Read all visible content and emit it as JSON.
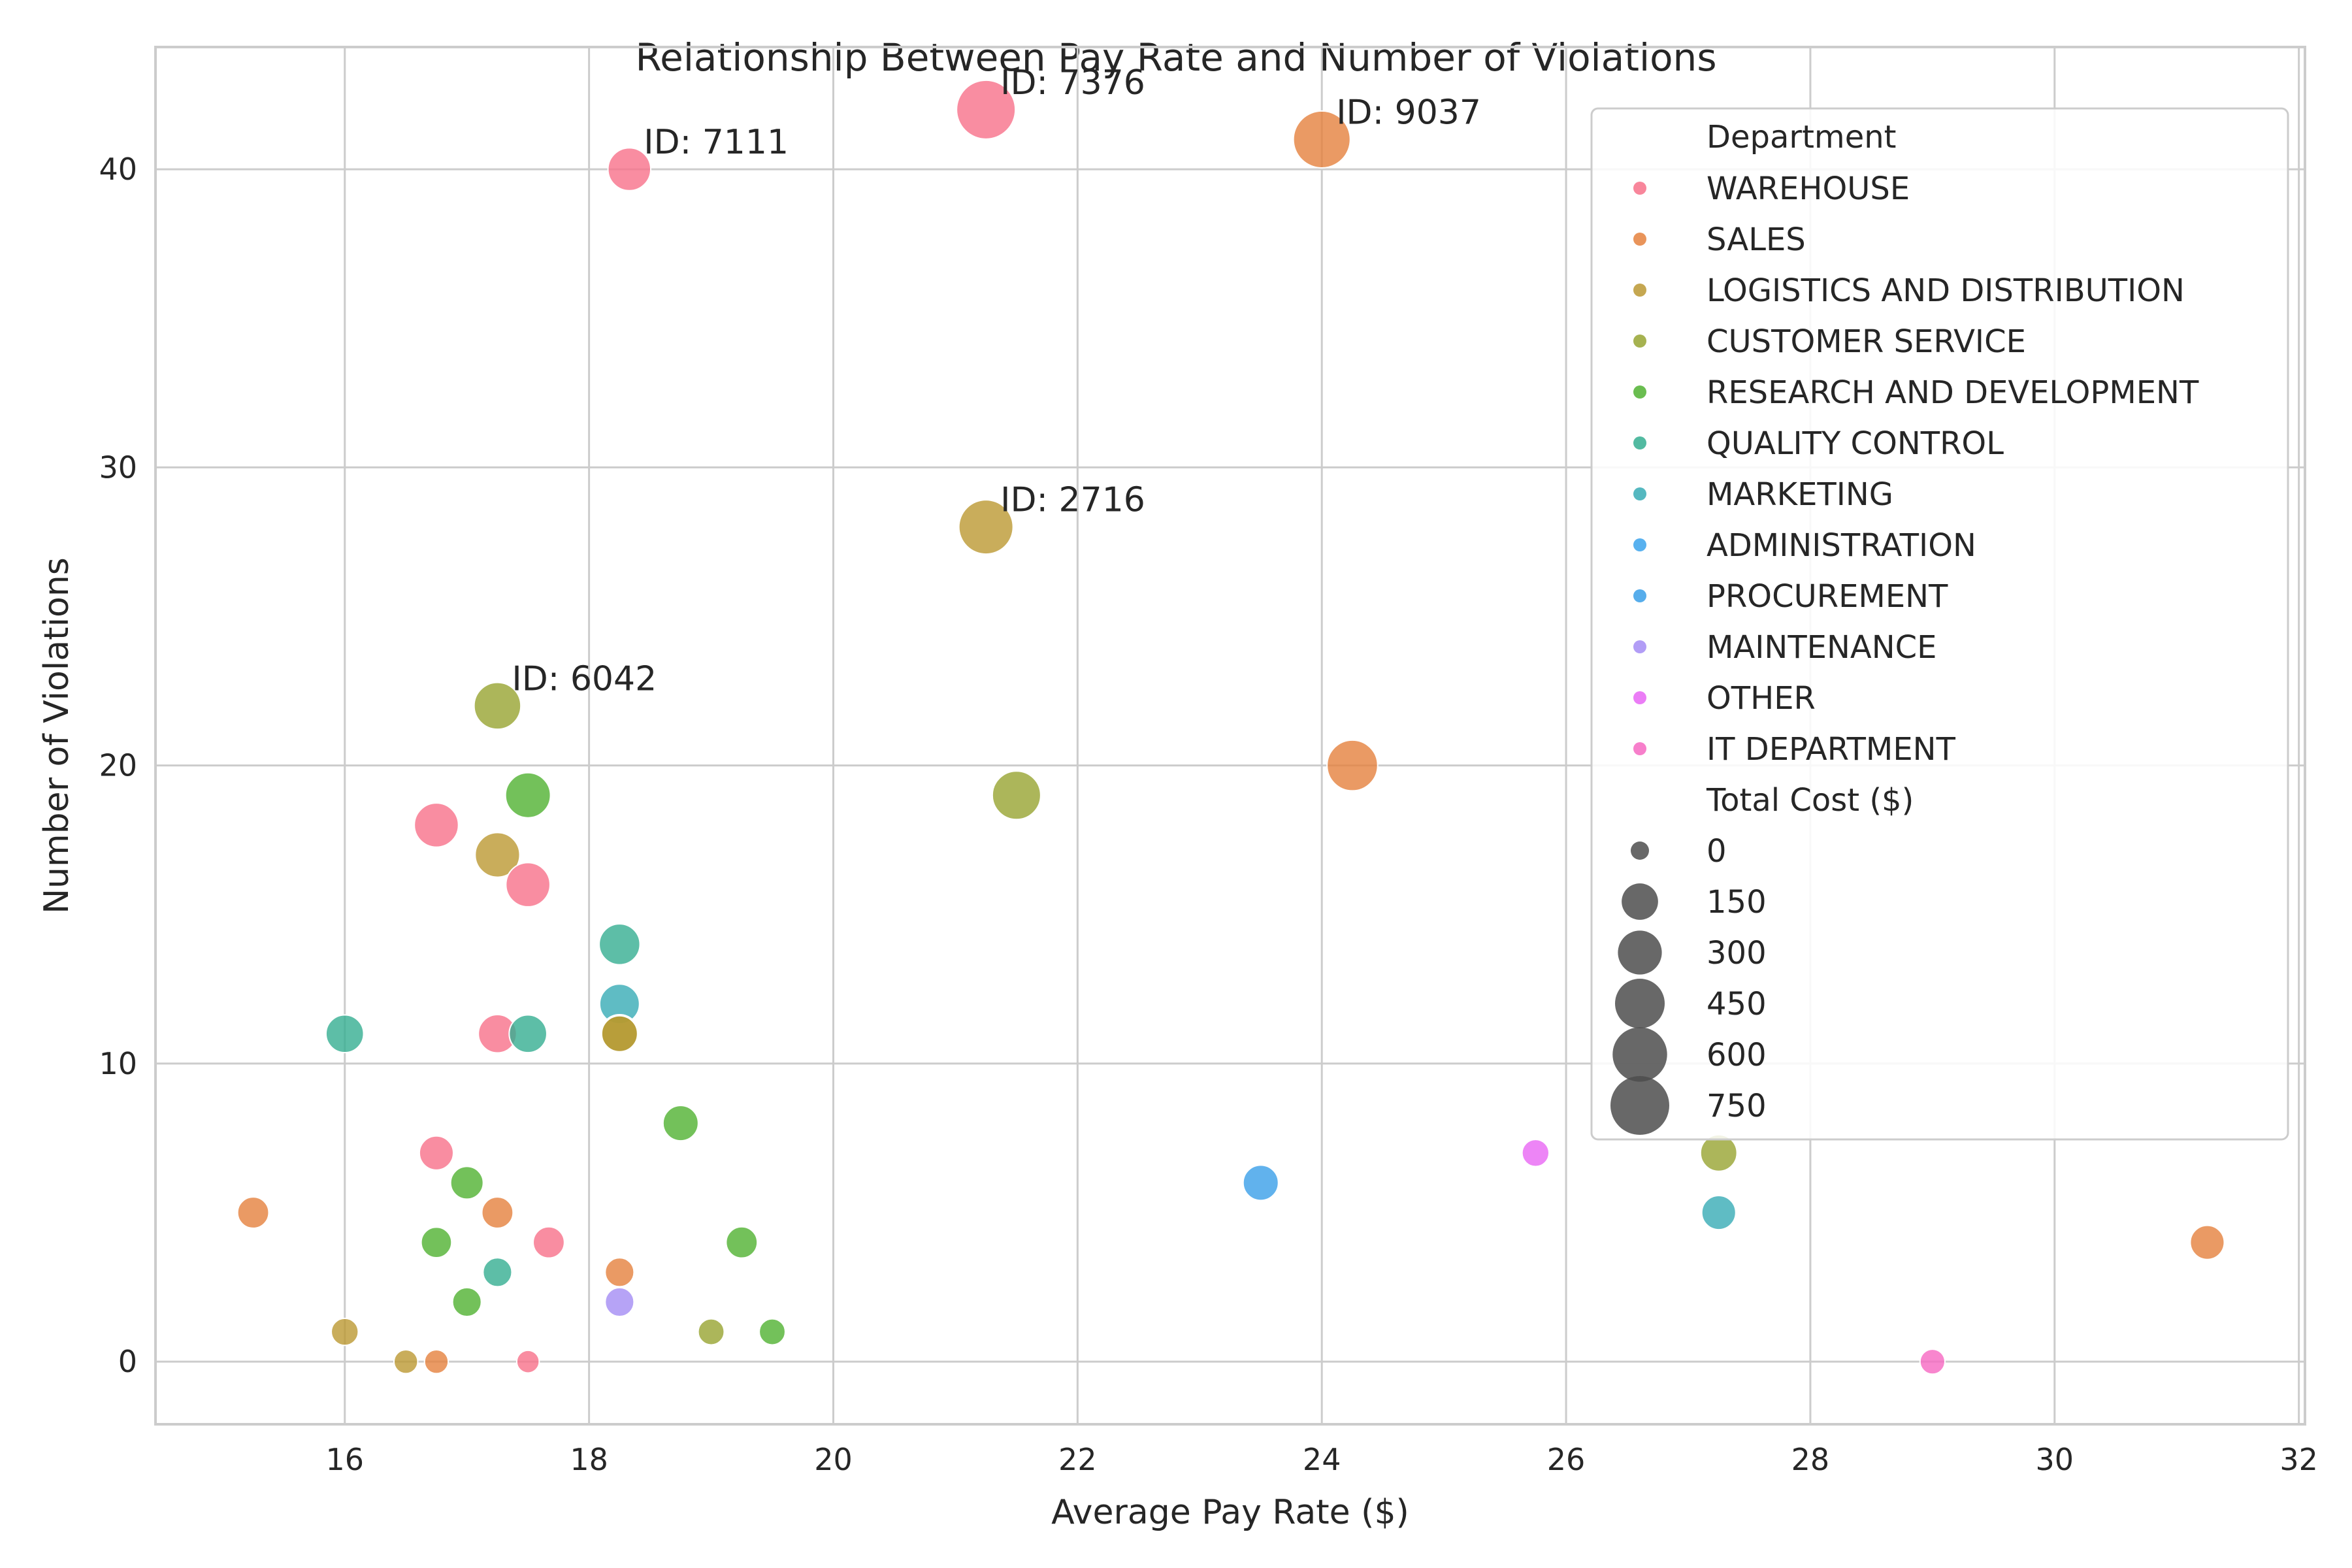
{
  "chart_data": {
    "type": "scatter",
    "title": "Relationship Between Pay Rate and Number of Violations",
    "xlabel": "Average Pay Rate ($)",
    "ylabel": "Number of Violations",
    "xlim": [
      14.45,
      32.05
    ],
    "ylim": [
      -2.1,
      44.1
    ],
    "xticks": [
      16,
      18,
      20,
      22,
      24,
      26,
      28,
      30,
      32
    ],
    "yticks": [
      0,
      10,
      20,
      30,
      40
    ],
    "grid": true,
    "legend_position": "upper right",
    "legend": {
      "hue_title": "Department",
      "size_title": "Total Cost ($)",
      "departments": [
        {
          "name": "WAREHOUSE",
          "color": "#f77189"
        },
        {
          "name": "SALES",
          "color": "#e5813d"
        },
        {
          "name": "LOGISTICS AND DISTRIBUTION",
          "color": "#bb9832"
        },
        {
          "name": "CUSTOMER SERVICE",
          "color": "#97a431"
        },
        {
          "name": "RESEARCH AND DEVELOPMENT",
          "color": "#50b131"
        },
        {
          "name": "QUALITY CONTROL",
          "color": "#34ae91"
        },
        {
          "name": "MARKETING",
          "color": "#37abb5"
        },
        {
          "name": "ADMINISTRATION",
          "color": "#3ba3ec"
        },
        {
          "name": "PROCUREMENT",
          "color": "#3a9fe8"
        },
        {
          "name": "MAINTENANCE",
          "color": "#a48cf4"
        },
        {
          "name": "OTHER",
          "color": "#e866f4"
        },
        {
          "name": "IT DEPARTMENT",
          "color": "#f668c2"
        }
      ],
      "sizes": [
        0,
        150,
        300,
        450,
        600,
        750
      ]
    },
    "points": [
      {
        "x": 21.25,
        "y": 42,
        "dept": "WAREHOUSE",
        "cost": 760,
        "label": "ID: 7376"
      },
      {
        "x": 24.0,
        "y": 41,
        "dept": "SALES",
        "cost": 700,
        "label": "ID: 9037"
      },
      {
        "x": 18.33,
        "y": 40,
        "dept": "WAREHOUSE",
        "cost": 330,
        "label": "ID: 7111"
      },
      {
        "x": 21.25,
        "y": 28,
        "dept": "LOGISTICS AND DISTRIBUTION",
        "cost": 620,
        "label": "ID: 2716"
      },
      {
        "x": 17.25,
        "y": 22,
        "dept": "CUSTOMER SERVICE",
        "cost": 420,
        "label": "ID: 6042"
      },
      {
        "x": 24.25,
        "y": 20,
        "dept": "SALES",
        "cost": 520
      },
      {
        "x": 21.5,
        "y": 19,
        "dept": "CUSTOMER SERVICE",
        "cost": 460
      },
      {
        "x": 17.5,
        "y": 19,
        "dept": "RESEARCH AND DEVELOPMENT",
        "cost": 380
      },
      {
        "x": 16.75,
        "y": 18,
        "dept": "WAREHOUSE",
        "cost": 360
      },
      {
        "x": 17.25,
        "y": 17,
        "dept": "LOGISTICS AND DISTRIBUTION",
        "cost": 370
      },
      {
        "x": 17.5,
        "y": 16,
        "dept": "WAREHOUSE",
        "cost": 360
      },
      {
        "x": 18.25,
        "y": 14,
        "dept": "QUALITY CONTROL",
        "cost": 290
      },
      {
        "x": 18.25,
        "y": 12,
        "dept": "MARKETING",
        "cost": 270
      },
      {
        "x": 16.0,
        "y": 11,
        "dept": "QUALITY CONTROL",
        "cost": 230
      },
      {
        "x": 17.25,
        "y": 11,
        "dept": "WAREHOUSE",
        "cost": 240
      },
      {
        "x": 17.5,
        "y": 11,
        "dept": "QUALITY CONTROL",
        "cost": 230
      },
      {
        "x": 18.25,
        "y": 11,
        "dept": "CUSTOMER SERVICE",
        "cost": 240
      },
      {
        "x": 18.25,
        "y": 11,
        "dept": "LOGISTICS AND DISTRIBUTION",
        "cost": 200
      },
      {
        "x": 18.75,
        "y": 8,
        "dept": "RESEARCH AND DEVELOPMENT",
        "cost": 190
      },
      {
        "x": 16.75,
        "y": 7,
        "dept": "WAREHOUSE",
        "cost": 170
      },
      {
        "x": 25.75,
        "y": 7,
        "dept": "OTHER",
        "cost": 80
      },
      {
        "x": 27.25,
        "y": 7,
        "dept": "CUSTOMER SERVICE",
        "cost": 210
      },
      {
        "x": 17.0,
        "y": 6,
        "dept": "RESEARCH AND DEVELOPMENT",
        "cost": 150
      },
      {
        "x": 23.5,
        "y": 6,
        "dept": "PROCUREMENT",
        "cost": 190
      },
      {
        "x": 15.25,
        "y": 5,
        "dept": "SALES",
        "cost": 130
      },
      {
        "x": 17.25,
        "y": 5,
        "dept": "SALES",
        "cost": 130
      },
      {
        "x": 27.25,
        "y": 5,
        "dept": "MARKETING",
        "cost": 170
      },
      {
        "x": 16.75,
        "y": 4,
        "dept": "RESEARCH AND DEVELOPMENT",
        "cost": 120
      },
      {
        "x": 17.67,
        "y": 4,
        "dept": "WAREHOUSE",
        "cost": 130
      },
      {
        "x": 19.25,
        "y": 4,
        "dept": "RESEARCH AND DEVELOPMENT",
        "cost": 130
      },
      {
        "x": 31.25,
        "y": 4,
        "dept": "SALES",
        "cost": 170
      },
      {
        "x": 17.25,
        "y": 3,
        "dept": "QUALITY CONTROL",
        "cost": 100
      },
      {
        "x": 18.25,
        "y": 3,
        "dept": "SALES",
        "cost": 100
      },
      {
        "x": 17.0,
        "y": 2,
        "dept": "RESEARCH AND DEVELOPMENT",
        "cost": 100
      },
      {
        "x": 18.25,
        "y": 2,
        "dept": "MAINTENANCE",
        "cost": 100
      },
      {
        "x": 16.0,
        "y": 1,
        "dept": "LOGISTICS AND DISTRIBUTION",
        "cost": 80
      },
      {
        "x": 19.0,
        "y": 1,
        "dept": "CUSTOMER SERVICE",
        "cost": 70
      },
      {
        "x": 19.5,
        "y": 1,
        "dept": "RESEARCH AND DEVELOPMENT",
        "cost": 70
      },
      {
        "x": 16.5,
        "y": 0,
        "dept": "LOGISTICS AND DISTRIBUTION",
        "cost": 50
      },
      {
        "x": 16.75,
        "y": 0,
        "dept": "SALES",
        "cost": 50
      },
      {
        "x": 17.5,
        "y": 0,
        "dept": "WAREHOUSE",
        "cost": 40
      },
      {
        "x": 29.0,
        "y": 0,
        "dept": "IT DEPARTMENT",
        "cost": 60
      }
    ]
  }
}
